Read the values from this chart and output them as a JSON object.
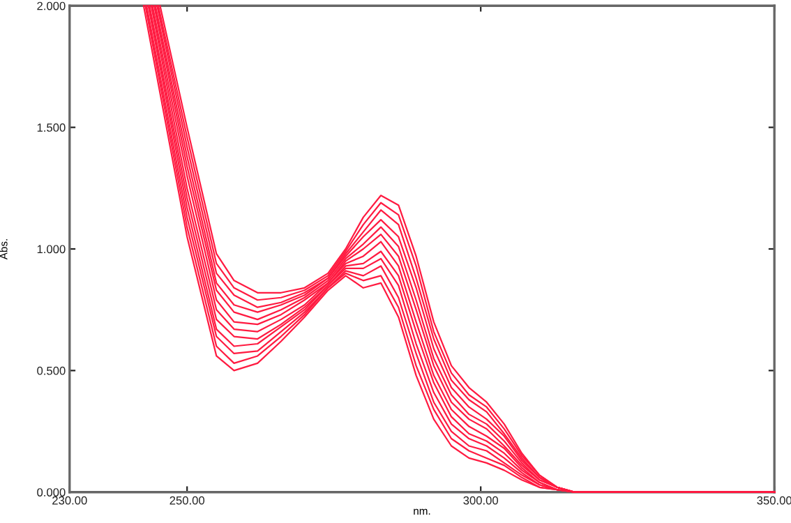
{
  "chart_data": {
    "type": "line",
    "xlabel": "nm.",
    "ylabel": "Abs.",
    "xlim": [
      230,
      350
    ],
    "ylim": [
      0,
      2
    ],
    "xticks": [
      {
        "value": 230,
        "label": "230.00"
      },
      {
        "value": 250,
        "label": "250.00"
      },
      {
        "value": 300,
        "label": "300.00"
      },
      {
        "value": 350,
        "label": "350.00"
      }
    ],
    "yticks": [
      {
        "value": 0,
        "label": "0.000"
      },
      {
        "value": 0.5,
        "label": "0.500"
      },
      {
        "value": 1,
        "label": "1.000"
      },
      {
        "value": 1.5,
        "label": "1.500"
      },
      {
        "value": 2,
        "label": "2.000"
      }
    ],
    "grid": false,
    "marker": "none",
    "line_style": "solid",
    "series": [
      {
        "color": "#ff1a40",
        "x": [
          242.6,
          250,
          255,
          258,
          262,
          266,
          270,
          274,
          277,
          280,
          283,
          286,
          289,
          292,
          295,
          298,
          301,
          304,
          307,
          310,
          313,
          316,
          320,
          330,
          350
        ],
        "values": [
          2.0,
          1.05,
          0.56,
          0.5,
          0.53,
          0.62,
          0.72,
          0.83,
          0.89,
          0.84,
          0.86,
          0.72,
          0.48,
          0.3,
          0.19,
          0.14,
          0.12,
          0.09,
          0.05,
          0.02,
          0.01,
          0,
          0,
          0,
          0
        ]
      },
      {
        "color": "#ff1a40",
        "x": [
          242.9,
          250,
          255,
          258,
          262,
          266,
          270,
          274,
          277,
          280,
          283,
          286,
          289,
          292,
          295,
          298,
          301,
          304,
          307,
          310,
          313,
          316,
          320,
          330,
          350
        ],
        "values": [
          2.0,
          1.09,
          0.6,
          0.53,
          0.56,
          0.64,
          0.73,
          0.84,
          0.9,
          0.87,
          0.89,
          0.76,
          0.52,
          0.34,
          0.22,
          0.17,
          0.14,
          0.11,
          0.06,
          0.02,
          0.01,
          0,
          0,
          0,
          0
        ]
      },
      {
        "color": "#ff1a40",
        "x": [
          243.1,
          250,
          255,
          258,
          262,
          266,
          270,
          274,
          277,
          280,
          283,
          286,
          289,
          292,
          295,
          298,
          301,
          304,
          307,
          310,
          313,
          316,
          320,
          330,
          350
        ],
        "values": [
          2.0,
          1.13,
          0.64,
          0.57,
          0.58,
          0.66,
          0.74,
          0.84,
          0.91,
          0.89,
          0.93,
          0.8,
          0.57,
          0.37,
          0.25,
          0.19,
          0.17,
          0.12,
          0.07,
          0.03,
          0.01,
          0,
          0,
          0,
          0
        ]
      },
      {
        "color": "#ff1a40",
        "x": [
          243.4,
          250,
          255,
          258,
          262,
          266,
          270,
          274,
          277,
          280,
          283,
          286,
          289,
          292,
          295,
          298,
          301,
          304,
          307,
          310,
          313,
          316,
          320,
          330,
          350
        ],
        "values": [
          2.0,
          1.17,
          0.67,
          0.6,
          0.61,
          0.68,
          0.75,
          0.85,
          0.92,
          0.92,
          0.96,
          0.85,
          0.61,
          0.41,
          0.28,
          0.22,
          0.19,
          0.14,
          0.08,
          0.03,
          0.01,
          0,
          0,
          0,
          0
        ]
      },
      {
        "color": "#ff1a40",
        "x": [
          243.6,
          250,
          255,
          258,
          262,
          266,
          270,
          274,
          277,
          280,
          283,
          286,
          289,
          292,
          295,
          298,
          301,
          304,
          307,
          310,
          313,
          316,
          320,
          330,
          350
        ],
        "values": [
          2.0,
          1.21,
          0.71,
          0.64,
          0.63,
          0.69,
          0.76,
          0.85,
          0.93,
          0.94,
          0.99,
          0.89,
          0.66,
          0.45,
          0.31,
          0.24,
          0.21,
          0.16,
          0.09,
          0.04,
          0.01,
          0,
          0,
          0,
          0
        ]
      },
      {
        "color": "#ff1a40",
        "x": [
          243.9,
          250,
          255,
          258,
          262,
          266,
          270,
          274,
          277,
          280,
          283,
          286,
          289,
          292,
          295,
          298,
          301,
          304,
          307,
          310,
          313,
          316,
          320,
          330,
          350
        ],
        "values": [
          2.0,
          1.25,
          0.75,
          0.67,
          0.66,
          0.71,
          0.77,
          0.86,
          0.94,
          0.97,
          1.03,
          0.93,
          0.7,
          0.48,
          0.34,
          0.27,
          0.23,
          0.18,
          0.1,
          0.04,
          0.01,
          0,
          0,
          0,
          0
        ]
      },
      {
        "color": "#ff1a40",
        "x": [
          244.1,
          250,
          255,
          258,
          262,
          266,
          270,
          274,
          277,
          280,
          283,
          286,
          289,
          292,
          295,
          298,
          301,
          304,
          307,
          310,
          313,
          316,
          320,
          330,
          350
        ],
        "values": [
          2.0,
          1.3,
          0.79,
          0.7,
          0.69,
          0.73,
          0.79,
          0.86,
          0.95,
          1.0,
          1.06,
          0.97,
          0.75,
          0.52,
          0.37,
          0.3,
          0.26,
          0.19,
          0.11,
          0.05,
          0.02,
          0,
          0,
          0,
          0
        ]
      },
      {
        "color": "#ff1a40",
        "x": [
          244.4,
          250,
          255,
          258,
          262,
          266,
          270,
          274,
          277,
          280,
          283,
          286,
          289,
          292,
          295,
          298,
          301,
          304,
          307,
          310,
          313,
          316,
          320,
          330,
          350
        ],
        "values": [
          2.0,
          1.34,
          0.83,
          0.74,
          0.71,
          0.75,
          0.8,
          0.87,
          0.96,
          1.02,
          1.09,
          1.01,
          0.79,
          0.55,
          0.4,
          0.32,
          0.28,
          0.21,
          0.12,
          0.05,
          0.02,
          0,
          0,
          0,
          0
        ]
      },
      {
        "color": "#ff1a40",
        "x": [
          244.6,
          250,
          255,
          258,
          262,
          266,
          270,
          274,
          277,
          280,
          283,
          286,
          289,
          292,
          295,
          298,
          301,
          304,
          307,
          310,
          313,
          316,
          320,
          330,
          350
        ],
        "values": [
          2.0,
          1.38,
          0.86,
          0.77,
          0.74,
          0.77,
          0.81,
          0.88,
          0.97,
          1.05,
          1.12,
          1.05,
          0.84,
          0.59,
          0.43,
          0.35,
          0.3,
          0.23,
          0.13,
          0.06,
          0.02,
          0,
          0,
          0,
          0
        ]
      },
      {
        "color": "#ff1a40",
        "x": [
          244.9,
          250,
          255,
          258,
          262,
          266,
          270,
          274,
          277,
          280,
          283,
          286,
          289,
          292,
          295,
          298,
          301,
          304,
          307,
          310,
          313,
          316,
          320,
          330,
          350
        ],
        "values": [
          2.0,
          1.42,
          0.9,
          0.81,
          0.76,
          0.78,
          0.82,
          0.88,
          0.98,
          1.07,
          1.16,
          1.1,
          0.88,
          0.63,
          0.46,
          0.38,
          0.33,
          0.24,
          0.14,
          0.06,
          0.02,
          0,
          0,
          0,
          0
        ]
      },
      {
        "color": "#ff1a40",
        "x": [
          245.1,
          250,
          255,
          258,
          262,
          266,
          270,
          274,
          277,
          280,
          283,
          286,
          289,
          292,
          295,
          298,
          301,
          304,
          307,
          310,
          313,
          316,
          320,
          330,
          350
        ],
        "values": [
          2.0,
          1.46,
          0.94,
          0.84,
          0.79,
          0.8,
          0.83,
          0.89,
          0.99,
          1.1,
          1.19,
          1.14,
          0.93,
          0.66,
          0.49,
          0.4,
          0.35,
          0.26,
          0.15,
          0.07,
          0.02,
          0,
          0,
          0,
          0
        ]
      },
      {
        "color": "#ff1a40",
        "x": [
          245.4,
          250,
          255,
          258,
          262,
          266,
          270,
          274,
          277,
          280,
          283,
          286,
          289,
          292,
          295,
          298,
          301,
          304,
          307,
          310,
          313,
          316,
          320,
          330,
          350
        ],
        "values": [
          2.0,
          1.5,
          0.98,
          0.87,
          0.82,
          0.82,
          0.84,
          0.9,
          1.0,
          1.13,
          1.22,
          1.18,
          0.97,
          0.7,
          0.52,
          0.43,
          0.37,
          0.28,
          0.16,
          0.07,
          0.02,
          0,
          0,
          0,
          0
        ]
      }
    ]
  }
}
